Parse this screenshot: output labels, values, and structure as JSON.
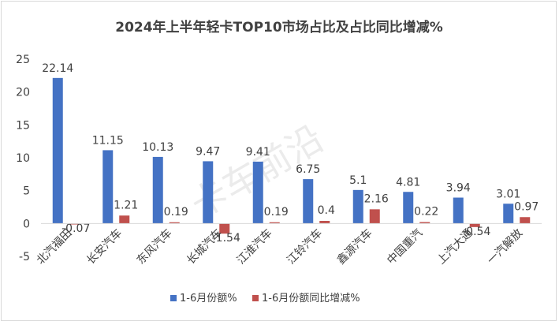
{
  "chart_data": {
    "type": "bar",
    "title": "2024年上半年轻卡TOP10市场占比及占比同比增减%",
    "categories": [
      "北汽福田",
      "长安汽车",
      "东风汽车",
      "长城汽车",
      "江淮汽车",
      "江铃汽车",
      "鑫源汽车",
      "中国重汽",
      "上汽大通",
      "一汽解放"
    ],
    "series": [
      {
        "name": "1-6月份额%",
        "color": "#4472c4",
        "values": [
          22.14,
          11.15,
          10.13,
          9.47,
          9.41,
          6.75,
          5.1,
          4.81,
          3.94,
          3.01
        ]
      },
      {
        "name": "1-6月份额同比增减%",
        "color": "#c0504d",
        "values": [
          -0.07,
          1.21,
          0.19,
          -1.54,
          0.19,
          0.4,
          2.16,
          0.22,
          -0.54,
          0.97
        ]
      }
    ],
    "data_labels": [
      [
        "22.14",
        "11.15",
        "10.13",
        "9.47",
        "9.41",
        "6.75",
        "5.1",
        "4.81",
        "3.94",
        "3.01"
      ],
      [
        "-0.07",
        "1.21",
        "0.19",
        "-1.54",
        "0.19",
        "0.4",
        "2.16",
        "0.22",
        "-0.54",
        "0.97"
      ]
    ],
    "ylim": [
      -5,
      25
    ],
    "yticks": [
      -5,
      0,
      5,
      10,
      15,
      20,
      25
    ],
    "grid": false,
    "legend": "bottom",
    "watermark": "卡车前沿"
  }
}
